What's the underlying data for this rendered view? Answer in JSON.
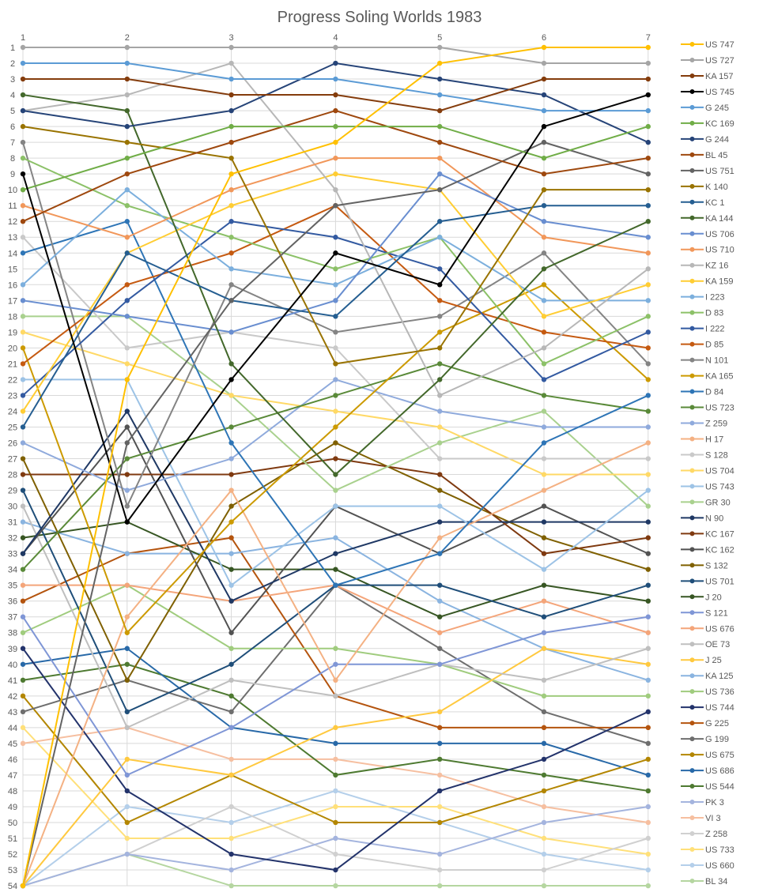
{
  "chart_data": {
    "type": "line",
    "title": "Progress Soling Worlds 1983",
    "x": [
      1,
      2,
      3,
      4,
      5,
      6,
      7
    ],
    "ylim": [
      1,
      54
    ],
    "y_reversed": true,
    "grid": true,
    "legend_position": "right",
    "x_axis_position": "top",
    "markers": "circle",
    "series": [
      {
        "name": "US 747",
        "color": "#FFC000",
        "values": [
          54,
          22,
          9,
          7,
          2,
          1,
          1
        ]
      },
      {
        "name": "US 727",
        "color": "#A5A5A5",
        "values": [
          1,
          1,
          1,
          1,
          1,
          2,
          2
        ]
      },
      {
        "name": "KA 157",
        "color": "#843C0C",
        "values": [
          3,
          3,
          4,
          4,
          5,
          3,
          3
        ]
      },
      {
        "name": "US 745",
        "color": "#000000",
        "values": [
          9,
          31,
          22,
          14,
          16,
          6,
          4
        ]
      },
      {
        "name": "G 245",
        "color": "#5B9BD5",
        "values": [
          2,
          2,
          3,
          3,
          4,
          5,
          5
        ]
      },
      {
        "name": "KC 169",
        "color": "#70AD47",
        "values": [
          10,
          8,
          6,
          6,
          6,
          8,
          6
        ]
      },
      {
        "name": "G 244",
        "color": "#264478",
        "values": [
          5,
          6,
          5,
          2,
          3,
          4,
          7
        ]
      },
      {
        "name": "BL 45",
        "color": "#9E480E",
        "values": [
          12,
          9,
          7,
          5,
          7,
          9,
          8
        ]
      },
      {
        "name": "US 751",
        "color": "#636363",
        "values": [
          54,
          26,
          17,
          11,
          10,
          7,
          9
        ]
      },
      {
        "name": "K 140",
        "color": "#997300",
        "values": [
          6,
          7,
          8,
          21,
          20,
          10,
          10
        ]
      },
      {
        "name": "KC 1",
        "color": "#255E91",
        "values": [
          25,
          14,
          17,
          18,
          12,
          11,
          11
        ]
      },
      {
        "name": "KA 144",
        "color": "#43682B",
        "values": [
          4,
          5,
          21,
          28,
          22,
          15,
          12
        ]
      },
      {
        "name": "US 706",
        "color": "#698ED0",
        "values": [
          17,
          18,
          19,
          17,
          9,
          12,
          13
        ]
      },
      {
        "name": "US 710",
        "color": "#F1975A",
        "values": [
          11,
          13,
          10,
          8,
          8,
          13,
          14
        ]
      },
      {
        "name": "KZ 16",
        "color": "#B7B7B7",
        "values": [
          5,
          4,
          2,
          10,
          23,
          20,
          15
        ]
      },
      {
        "name": "KA 159",
        "color": "#FFCD33",
        "values": [
          24,
          14,
          11,
          9,
          10,
          18,
          16
        ]
      },
      {
        "name": "I 223",
        "color": "#7CAFDD",
        "values": [
          16,
          10,
          15,
          16,
          13,
          17,
          17
        ]
      },
      {
        "name": "D 83",
        "color": "#8CC168",
        "values": [
          8,
          11,
          13,
          15,
          13,
          21,
          18
        ]
      },
      {
        "name": "I 222",
        "color": "#335AA1",
        "values": [
          23,
          17,
          12,
          13,
          15,
          22,
          19
        ]
      },
      {
        "name": "D 85",
        "color": "#C55A11",
        "values": [
          21,
          16,
          14,
          11,
          17,
          19,
          20
        ]
      },
      {
        "name": "N 101",
        "color": "#848484",
        "values": [
          7,
          30,
          16,
          19,
          18,
          14,
          21
        ]
      },
      {
        "name": "KA 165",
        "color": "#CC9A00",
        "values": [
          20,
          38,
          31,
          25,
          19,
          16,
          22
        ]
      },
      {
        "name": "D 84",
        "color": "#2E75B6",
        "values": [
          14,
          12,
          26,
          35,
          33,
          26,
          23
        ]
      },
      {
        "name": "US 723",
        "color": "#5A8A39",
        "values": [
          34,
          27,
          25,
          23,
          21,
          23,
          24
        ]
      },
      {
        "name": "Z 259",
        "color": "#8FAADC",
        "values": [
          26,
          29,
          27,
          22,
          24,
          25,
          25
        ]
      },
      {
        "name": "H 17",
        "color": "#F4B183",
        "values": [
          54,
          37,
          29,
          41,
          32,
          29,
          26
        ]
      },
      {
        "name": "S 128",
        "color": "#C9C9C9",
        "values": [
          13,
          20,
          19,
          20,
          27,
          27,
          27
        ]
      },
      {
        "name": "US 704",
        "color": "#FFD966",
        "values": [
          19,
          21,
          23,
          24,
          25,
          28,
          28
        ]
      },
      {
        "name": "US 743",
        "color": "#9DC3E6",
        "values": [
          22,
          22,
          35,
          30,
          30,
          34,
          29
        ]
      },
      {
        "name": "GR 30",
        "color": "#A9D18E",
        "values": [
          18,
          18,
          23,
          29,
          26,
          24,
          30
        ]
      },
      {
        "name": "N 90",
        "color": "#1F3864",
        "values": [
          33,
          24,
          36,
          33,
          31,
          31,
          31
        ]
      },
      {
        "name": "KC 167",
        "color": "#7F3A10",
        "values": [
          28,
          28,
          28,
          27,
          28,
          33,
          32
        ]
      },
      {
        "name": "KC 162",
        "color": "#525252",
        "values": [
          33,
          25,
          38,
          30,
          33,
          30,
          33
        ]
      },
      {
        "name": "S 132",
        "color": "#7F6000",
        "values": [
          27,
          41,
          30,
          26,
          29,
          32,
          34
        ]
      },
      {
        "name": "US 701",
        "color": "#1F4E79",
        "values": [
          29,
          43,
          40,
          35,
          35,
          37,
          35
        ]
      },
      {
        "name": "J 20",
        "color": "#375623",
        "values": [
          32,
          31,
          34,
          34,
          37,
          35,
          36
        ]
      },
      {
        "name": "S 121",
        "color": "#7F96D6",
        "values": [
          37,
          47,
          44,
          40,
          40,
          38,
          37
        ]
      },
      {
        "name": "US 676",
        "color": "#F4A57A",
        "values": [
          35,
          35,
          36,
          35,
          38,
          36,
          38
        ]
      },
      {
        "name": "OE 73",
        "color": "#BFBFBF",
        "values": [
          30,
          44,
          41,
          42,
          40,
          41,
          39
        ]
      },
      {
        "name": "J 25",
        "color": "#FFC93F",
        "values": [
          54,
          46,
          47,
          44,
          43,
          39,
          40
        ]
      },
      {
        "name": "KA 125",
        "color": "#8AB4E0",
        "values": [
          31,
          33,
          33,
          32,
          36,
          39,
          41
        ]
      },
      {
        "name": "US 736",
        "color": "#A0CC7E",
        "values": [
          38,
          35,
          39,
          39,
          40,
          42,
          42
        ]
      },
      {
        "name": "US 744",
        "color": "#23336B",
        "values": [
          39,
          48,
          52,
          53,
          48,
          46,
          43
        ]
      },
      {
        "name": "G 225",
        "color": "#B4540E",
        "values": [
          36,
          33,
          32,
          42,
          44,
          44,
          44
        ]
      },
      {
        "name": "G 199",
        "color": "#6E6E6E",
        "values": [
          43,
          41,
          43,
          35,
          39,
          43,
          45
        ]
      },
      {
        "name": "US 675",
        "color": "#B38600",
        "values": [
          42,
          50,
          47,
          50,
          50,
          48,
          46
        ]
      },
      {
        "name": "US 686",
        "color": "#2869A8",
        "values": [
          40,
          39,
          44,
          45,
          45,
          45,
          47
        ]
      },
      {
        "name": "US 544",
        "color": "#4E7A31",
        "values": [
          41,
          40,
          42,
          47,
          46,
          47,
          48
        ]
      },
      {
        "name": "PK 3",
        "color": "#A4B4DE",
        "values": [
          54,
          52,
          53,
          51,
          52,
          50,
          49
        ]
      },
      {
        "name": "VI 3",
        "color": "#F6BFA0",
        "values": [
          45,
          44,
          46,
          46,
          47,
          49,
          50
        ]
      },
      {
        "name": "Z 258",
        "color": "#D0D0D0",
        "values": [
          54,
          52,
          49,
          52,
          53,
          53,
          51
        ]
      },
      {
        "name": "US 733",
        "color": "#FFE07A",
        "values": [
          44,
          51,
          51,
          49,
          49,
          51,
          52
        ]
      },
      {
        "name": "US 660",
        "color": "#B4CFEA",
        "values": [
          54,
          49,
          50,
          48,
          50,
          52,
          53
        ]
      },
      {
        "name": "BL 34",
        "color": "#B5D6A0",
        "values": [
          54,
          52,
          54,
          54,
          54,
          54,
          54
        ]
      }
    ]
  }
}
